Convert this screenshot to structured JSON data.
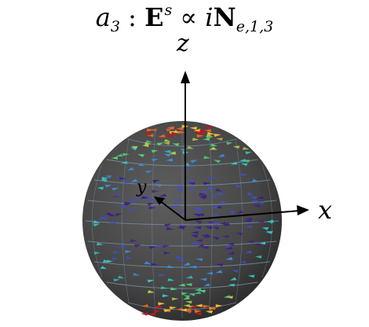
{
  "title": {
    "a": "a",
    "a_sub": "3",
    "colon": ":",
    "E": "E",
    "E_sup": "s",
    "propto": "∝",
    "i": "i",
    "N": "N",
    "N_sub": "e,1,3"
  },
  "axes": {
    "x": "x",
    "y": "y",
    "z": "z"
  },
  "colors": {
    "sphere_body": "#4a4a4a",
    "sphere_shadow": "#2c2c2c",
    "streamline": "#7f9fbf",
    "axis": "#000000",
    "arrow_palette": [
      "#3b1f8a",
      "#3f4fc4",
      "#3a8ee0",
      "#37c3c0",
      "#59d17a",
      "#b5d64a",
      "#f0b93a",
      "#e8642a",
      "#c0171f"
    ]
  }
}
